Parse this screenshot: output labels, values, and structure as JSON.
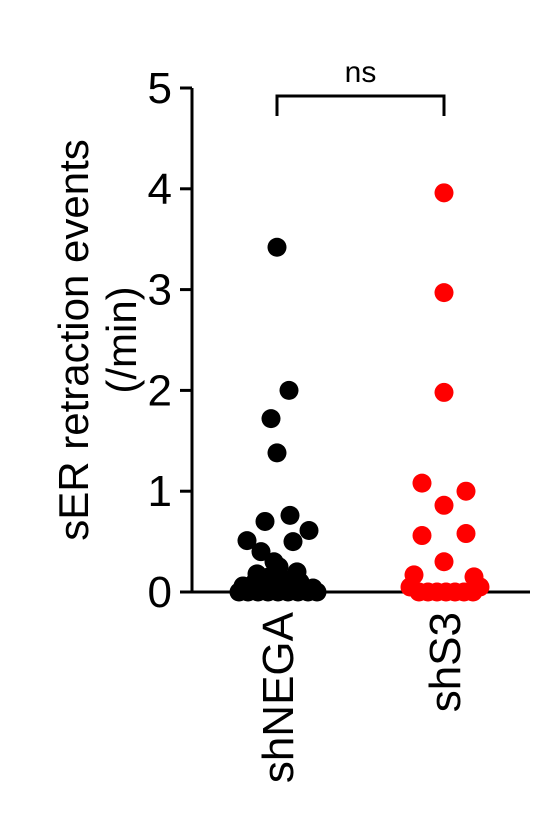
{
  "chart_data": {
    "type": "scatter",
    "title": "",
    "ylabel_line1": "sER retraction events",
    "ylabel_line2": "(/min)",
    "xlabel": "",
    "ylim": [
      0,
      5
    ],
    "yticks": [
      "0",
      "1",
      "2",
      "3",
      "4",
      "5"
    ],
    "categories": [
      "shNEGA",
      "shS3"
    ],
    "grid": false,
    "legend": "none",
    "significance": {
      "label": "ns",
      "between": [
        "shNEGA",
        "shS3"
      ]
    },
    "series": [
      {
        "name": "shNEGA",
        "color": "#000000",
        "points": [
          {
            "jitter": 0,
            "y": 3.42
          },
          {
            "jitter": 0.6,
            "y": 2.0
          },
          {
            "jitter": -0.3,
            "y": 1.72
          },
          {
            "jitter": 0,
            "y": 1.38
          },
          {
            "jitter": -0.6,
            "y": 0.7
          },
          {
            "jitter": 0.65,
            "y": 0.76
          },
          {
            "jitter": -1.5,
            "y": 0.51
          },
          {
            "jitter": 1.6,
            "y": 0.61
          },
          {
            "jitter": -0.8,
            "y": 0.4
          },
          {
            "jitter": 0.8,
            "y": 0.5
          },
          {
            "jitter": -0.15,
            "y": 0.3
          },
          {
            "jitter": 0.1,
            "y": 0.25
          },
          {
            "jitter": -1.0,
            "y": 0.18
          },
          {
            "jitter": 1.0,
            "y": 0.2
          },
          {
            "jitter": -0.4,
            "y": 0.15
          },
          {
            "jitter": 0.45,
            "y": 0.12
          },
          {
            "jitter": -1.7,
            "y": 0.06
          },
          {
            "jitter": -1.2,
            "y": 0.04
          },
          {
            "jitter": -0.7,
            "y": 0.05
          },
          {
            "jitter": -0.2,
            "y": 0.04
          },
          {
            "jitter": 0.3,
            "y": 0.05
          },
          {
            "jitter": 0.8,
            "y": 0.04
          },
          {
            "jitter": 1.3,
            "y": 0.05
          },
          {
            "jitter": 1.8,
            "y": 0.04
          },
          {
            "jitter": -1.9,
            "y": 0.0
          },
          {
            "jitter": -1.45,
            "y": 0.0
          },
          {
            "jitter": -0.95,
            "y": 0.0
          },
          {
            "jitter": -0.45,
            "y": 0.0
          },
          {
            "jitter": 0.05,
            "y": 0.0
          },
          {
            "jitter": 0.55,
            "y": 0.0
          },
          {
            "jitter": 1.05,
            "y": 0.0
          },
          {
            "jitter": 1.55,
            "y": 0.0
          },
          {
            "jitter": 2.0,
            "y": 0.0
          },
          {
            "jitter": -1.1,
            "y": 0.1
          },
          {
            "jitter": 1.15,
            "y": 0.1
          }
        ]
      },
      {
        "name": "shS3",
        "color": "#ff0000",
        "points": [
          {
            "jitter": 0,
            "y": 3.96
          },
          {
            "jitter": 0,
            "y": 2.97
          },
          {
            "jitter": 0,
            "y": 1.98
          },
          {
            "jitter": -1.1,
            "y": 1.08
          },
          {
            "jitter": 1.1,
            "y": 1.0
          },
          {
            "jitter": 0,
            "y": 0.86
          },
          {
            "jitter": -1.1,
            "y": 0.56
          },
          {
            "jitter": 1.1,
            "y": 0.58
          },
          {
            "jitter": 0,
            "y": 0.3
          },
          {
            "jitter": -1.5,
            "y": 0.17
          },
          {
            "jitter": 1.5,
            "y": 0.15
          },
          {
            "jitter": -1.7,
            "y": 0.05
          },
          {
            "jitter": -1.25,
            "y": 0.0
          },
          {
            "jitter": -0.8,
            "y": 0.0
          },
          {
            "jitter": -0.35,
            "y": 0.0
          },
          {
            "jitter": 0.1,
            "y": 0.0
          },
          {
            "jitter": 0.55,
            "y": 0.0
          },
          {
            "jitter": 1.0,
            "y": 0.0
          },
          {
            "jitter": 1.45,
            "y": 0.0
          },
          {
            "jitter": 1.8,
            "y": 0.05
          }
        ]
      }
    ]
  }
}
